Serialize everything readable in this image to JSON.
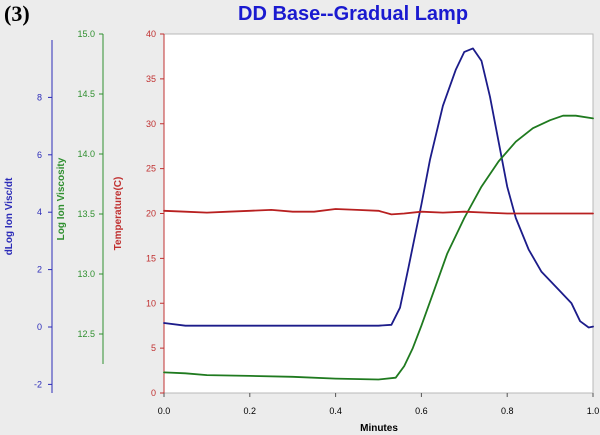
{
  "panel_label": "(3)",
  "chart_data": {
    "type": "line",
    "title": "DD Base--Gradual Lamp",
    "xlabel": "Minutes",
    "xlim": [
      0,
      1.0
    ],
    "x_ticks": [
      "0.0",
      "0.2",
      "0.4",
      "0.6",
      "0.8",
      "1.0"
    ],
    "grid": false,
    "y_axes": [
      {
        "id": "dlog",
        "label": "dLog Ion Visc/dt",
        "color": "#2b2bb8",
        "ylim": [
          -2.3,
          10
        ],
        "ticks": [
          {
            "v": -2,
            "t": "-2"
          },
          {
            "v": 0,
            "t": "0"
          },
          {
            "v": 2,
            "t": "2"
          },
          {
            "v": 4,
            "t": "4"
          },
          {
            "v": 6,
            "t": "6"
          },
          {
            "v": 8,
            "t": "8"
          }
        ]
      },
      {
        "id": "logvisc",
        "label": "Log Ion Viscosity",
        "color": "#2f8f2f",
        "ylim": [
          12.25,
          15.0
        ],
        "ticks": [
          {
            "v": 12.5,
            "t": "12.5"
          },
          {
            "v": 13.0,
            "t": "13.0"
          },
          {
            "v": 13.5,
            "t": "13.5"
          },
          {
            "v": 14.0,
            "t": "14.0"
          },
          {
            "v": 14.5,
            "t": "14.5"
          },
          {
            "v": 15.0,
            "t": "15.0"
          }
        ]
      },
      {
        "id": "temp",
        "label": "Temperature(C)",
        "color": "#c03030",
        "ylim": [
          0,
          40
        ],
        "ticks": [
          {
            "v": 0,
            "t": "0"
          },
          {
            "v": 5,
            "t": "5"
          },
          {
            "v": 10,
            "t": "10"
          },
          {
            "v": 15,
            "t": "15"
          },
          {
            "v": 20,
            "t": "20"
          },
          {
            "v": 25,
            "t": "25"
          },
          {
            "v": 30,
            "t": "30"
          },
          {
            "v": 35,
            "t": "35"
          },
          {
            "v": 40,
            "t": "40"
          }
        ]
      }
    ],
    "series": [
      {
        "id": "blue",
        "axis": "temp",
        "color": "#1c1c8a",
        "x": [
          0.0,
          0.05,
          0.1,
          0.2,
          0.3,
          0.4,
          0.5,
          0.53,
          0.55,
          0.57,
          0.6,
          0.62,
          0.65,
          0.68,
          0.7,
          0.72,
          0.74,
          0.76,
          0.78,
          0.8,
          0.82,
          0.85,
          0.88,
          0.9,
          0.92,
          0.95,
          0.97,
          0.99,
          1.0
        ],
        "y": [
          7.8,
          7.5,
          7.5,
          7.5,
          7.5,
          7.5,
          7.5,
          7.6,
          9.5,
          14,
          21,
          26,
          32,
          36,
          38,
          38.4,
          37,
          33,
          28,
          23,
          19.5,
          16,
          13.5,
          12.5,
          11.5,
          10,
          8,
          7.3,
          7.4
        ]
      },
      {
        "id": "green",
        "axis": "temp",
        "color": "#1f7a1f",
        "x": [
          0.0,
          0.05,
          0.1,
          0.2,
          0.3,
          0.4,
          0.5,
          0.54,
          0.56,
          0.58,
          0.6,
          0.63,
          0.66,
          0.7,
          0.74,
          0.78,
          0.82,
          0.86,
          0.9,
          0.93,
          0.96,
          1.0
        ],
        "y": [
          2.3,
          2.2,
          2.0,
          1.9,
          1.8,
          1.6,
          1.5,
          1.7,
          3.0,
          5.0,
          7.5,
          11.5,
          15.5,
          19.5,
          23.0,
          25.8,
          28.0,
          29.5,
          30.4,
          30.9,
          30.9,
          30.6
        ]
      },
      {
        "id": "red",
        "axis": "temp",
        "color": "#b82020",
        "x": [
          0.0,
          0.05,
          0.1,
          0.15,
          0.2,
          0.25,
          0.3,
          0.35,
          0.4,
          0.45,
          0.5,
          0.53,
          0.56,
          0.6,
          0.65,
          0.7,
          0.75,
          0.8,
          0.85,
          0.9,
          0.95,
          1.0
        ],
        "y": [
          20.3,
          20.2,
          20.1,
          20.2,
          20.3,
          20.4,
          20.2,
          20.2,
          20.5,
          20.4,
          20.3,
          19.9,
          20.0,
          20.2,
          20.1,
          20.2,
          20.1,
          20.0,
          20.0,
          20.0,
          20.0,
          20.0
        ]
      }
    ]
  }
}
